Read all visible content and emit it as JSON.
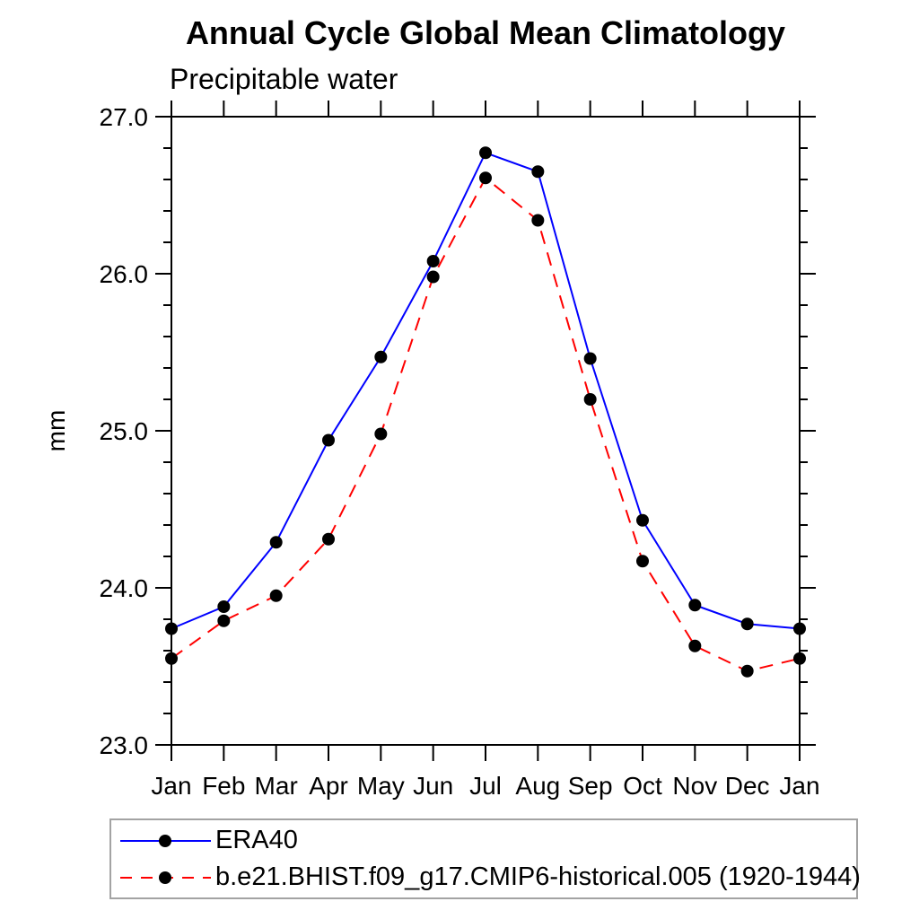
{
  "chart_data": {
    "type": "line",
    "title": "Annual Cycle Global Mean Climatology",
    "subtitle": "Precipitable water",
    "ylabel": "mm",
    "xlabel": "",
    "categories": [
      "Jan",
      "Feb",
      "Mar",
      "Apr",
      "May",
      "Jun",
      "Jul",
      "Aug",
      "Sep",
      "Oct",
      "Nov",
      "Dec",
      "Jan"
    ],
    "ylim": [
      23.0,
      27.0
    ],
    "y_major_tick_labels": [
      "23.0",
      "24.0",
      "25.0",
      "26.0",
      "27.0"
    ],
    "y_minor_step": 0.2,
    "grid": false,
    "frame": true,
    "tick_style": "outward-all-sides",
    "legend_position": "bottom-left-boxed",
    "axis_color": "#000000",
    "marker": "filled-circle",
    "marker_color": "#000000",
    "series": [
      {
        "name": "ERA40",
        "line_style": "solid",
        "line_color": "#0000ff",
        "values": [
          23.74,
          23.88,
          24.29,
          24.94,
          25.47,
          26.08,
          26.77,
          26.65,
          25.46,
          24.43,
          23.89,
          23.77,
          23.74
        ]
      },
      {
        "name": "b.e21.BHIST.f09_g17.CMIP6-historical.005 (1920-1944)",
        "line_style": "dashed",
        "line_color": "#ff0000",
        "values": [
          23.55,
          23.79,
          23.95,
          24.31,
          24.98,
          25.98,
          26.61,
          26.34,
          25.2,
          24.17,
          23.63,
          23.47,
          23.55
        ]
      }
    ]
  }
}
